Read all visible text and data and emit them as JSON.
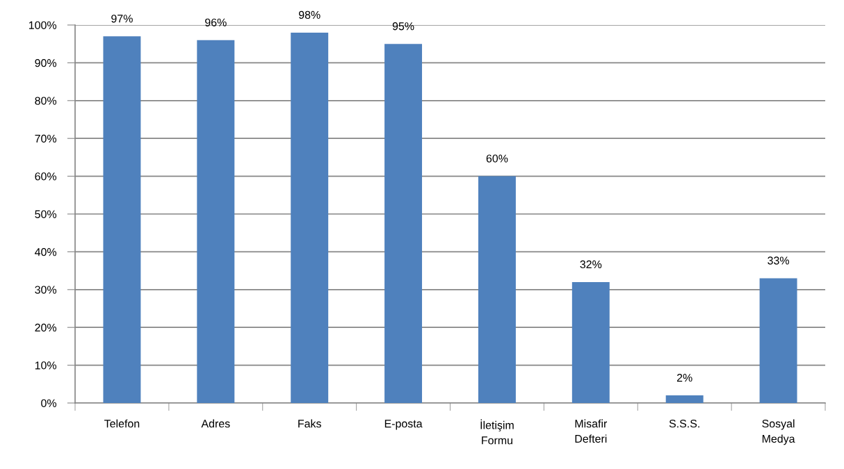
{
  "chart_data": {
    "type": "bar",
    "categories": [
      "Telefon",
      "Adres",
      "Faks",
      "E-posta",
      "İletişim Formu",
      "Misafir Defteri",
      "S.S.S.",
      "Sosyal Medya"
    ],
    "values": [
      97,
      96,
      98,
      95,
      60,
      32,
      2,
      33
    ],
    "value_labels": [
      "97%",
      "96%",
      "98%",
      "95%",
      "60%",
      "32%",
      "2%",
      "33%"
    ],
    "color": "#4f81bd",
    "ylim": [
      0,
      100
    ],
    "yticks": [
      {
        "value": 0,
        "label": "0%"
      },
      {
        "value": 10,
        "label": "10%"
      },
      {
        "value": 20,
        "label": "20%"
      },
      {
        "value": 30,
        "label": "30%"
      },
      {
        "value": 40,
        "label": "40%"
      },
      {
        "value": 50,
        "label": "50%"
      },
      {
        "value": 60,
        "label": "60%"
      },
      {
        "value": 70,
        "label": "70%"
      },
      {
        "value": 80,
        "label": "80%"
      },
      {
        "value": 90,
        "label": "90%"
      },
      {
        "value": 100,
        "label": "100%"
      }
    ],
    "grid": "y"
  }
}
